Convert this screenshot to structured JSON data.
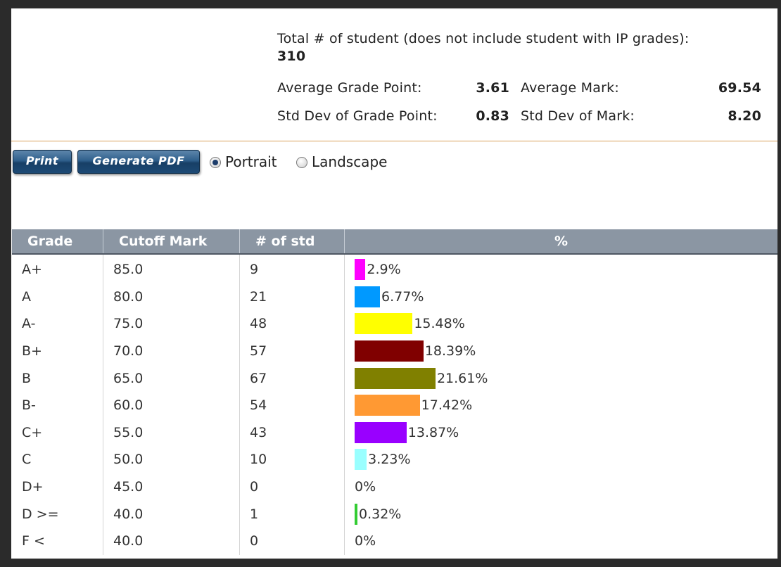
{
  "summary": {
    "total_label": "Total # of student (does not include student with IP grades):",
    "total_value": "310",
    "avg_gp_label": "Average Grade Point:",
    "avg_gp_value": "3.61",
    "avg_mark_label": "Average Mark:",
    "avg_mark_value": "69.54",
    "std_gp_label": "Std Dev of Grade Point:",
    "std_gp_value": "0.83",
    "std_mark_label": "Std Dev of Mark:",
    "std_mark_value": "8.20"
  },
  "toolbar": {
    "print_label": "Print",
    "pdf_label": "Generate PDF",
    "portrait_label": "Portrait",
    "landscape_label": "Landscape",
    "selected_orientation": "Portrait"
  },
  "table": {
    "headers": [
      "Grade",
      "Cutoff Mark",
      "# of std",
      "%"
    ],
    "rows": [
      {
        "grade": "A+",
        "cutoff": "85.0",
        "count": "9",
        "percent": "2.9%",
        "value": 2.9,
        "color": "#ff00ff"
      },
      {
        "grade": "A",
        "cutoff": "80.0",
        "count": "21",
        "percent": "6.77%",
        "value": 6.77,
        "color": "#0099ff"
      },
      {
        "grade": "A-",
        "cutoff": "75.0",
        "count": "48",
        "percent": "15.48%",
        "value": 15.48,
        "color": "#ffff00"
      },
      {
        "grade": "B+",
        "cutoff": "70.0",
        "count": "57",
        "percent": "18.39%",
        "value": 18.39,
        "color": "#800000"
      },
      {
        "grade": "B",
        "cutoff": "65.0",
        "count": "67",
        "percent": "21.61%",
        "value": 21.61,
        "color": "#808000"
      },
      {
        "grade": "B-",
        "cutoff": "60.0",
        "count": "54",
        "percent": "17.42%",
        "value": 17.42,
        "color": "#ff9933"
      },
      {
        "grade": "C+",
        "cutoff": "55.0",
        "count": "43",
        "percent": "13.87%",
        "value": 13.87,
        "color": "#9900ff"
      },
      {
        "grade": "C",
        "cutoff": "50.0",
        "count": "10",
        "percent": "3.23%",
        "value": 3.23,
        "color": "#99ffff"
      },
      {
        "grade": "D+",
        "cutoff": "45.0",
        "count": "0",
        "percent": "0%",
        "value": 0,
        "color": "#cccccc"
      },
      {
        "grade": "D >=",
        "cutoff": "40.0",
        "count": "1",
        "percent": "0.32%",
        "value": 0.32,
        "color": "#33cc33"
      },
      {
        "grade": "F <",
        "cutoff": "40.0",
        "count": "0",
        "percent": "0%",
        "value": 0,
        "color": "#cccccc"
      }
    ]
  }
}
